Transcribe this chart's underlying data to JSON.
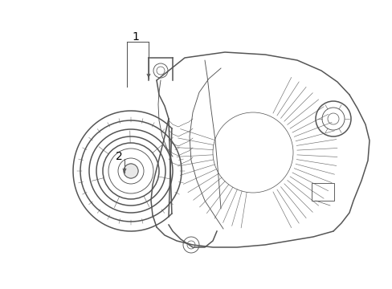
{
  "background_color": "#ffffff",
  "line_color": "#555555",
  "label_color": "#000000",
  "fig_width": 4.89,
  "fig_height": 3.6,
  "dpi": 100,
  "label1_text": "1",
  "label2_text": "2",
  "label1_fontsize": 10,
  "label2_fontsize": 10,
  "lw_main": 1.1,
  "lw_detail": 0.65,
  "lw_label": 0.75
}
